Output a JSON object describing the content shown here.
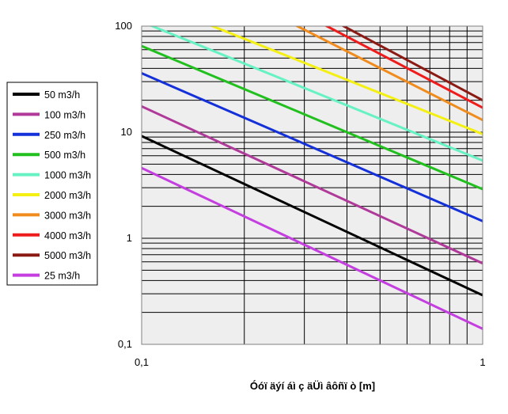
{
  "chart_data": {
    "type": "line",
    "title": "",
    "xlabel": "Óóï äýí áì ç äÜì âôñï ò [m]",
    "ylabel": "",
    "x_scale": "log",
    "y_scale": "log",
    "xlim": [
      0.1,
      1
    ],
    "ylim": [
      0.1,
      100
    ],
    "x_ticks": [
      "0,1",
      "1"
    ],
    "y_ticks": [
      "0,1",
      "1",
      "10",
      "100"
    ],
    "grid": true,
    "legend_position": "left",
    "series": [
      {
        "name": "50 m3/h",
        "color": "#000000",
        "x": [
          0.1,
          1
        ],
        "y": [
          9.2,
          0.29
        ]
      },
      {
        "name": "100 m3/h",
        "color": "#b03a9a",
        "x": [
          0.1,
          1
        ],
        "y": [
          17.5,
          0.58
        ]
      },
      {
        "name": "250 m3/h",
        "color": "#1430d8",
        "x": [
          0.1,
          1
        ],
        "y": [
          36,
          1.45
        ]
      },
      {
        "name": "500 m3/h",
        "color": "#22c01f",
        "x": [
          0.1,
          1
        ],
        "y": [
          65,
          2.9
        ]
      },
      {
        "name": "1000 m3/h",
        "color": "#66f2c2",
        "x": [
          0.1,
          1
        ],
        "y": [
          110,
          5.4
        ]
      },
      {
        "name": "2000 m3/h",
        "color": "#f5f014",
        "x": [
          0.15,
          1
        ],
        "y": [
          110,
          9.6
        ]
      },
      {
        "name": "3000 m3/h",
        "color": "#f08c1e",
        "x": [
          0.27,
          1
        ],
        "y": [
          110,
          13
        ]
      },
      {
        "name": "4000 m3/h",
        "color": "#ee1c1c",
        "x": [
          0.33,
          1
        ],
        "y": [
          110,
          17
        ]
      },
      {
        "name": "5000 m3/h",
        "color": "#8c1a14",
        "x": [
          0.37,
          1
        ],
        "y": [
          110,
          20
        ]
      },
      {
        "name": "25 m3/h",
        "color": "#c43ee0",
        "x": [
          0.1,
          1
        ],
        "y": [
          4.6,
          0.14
        ]
      }
    ]
  }
}
